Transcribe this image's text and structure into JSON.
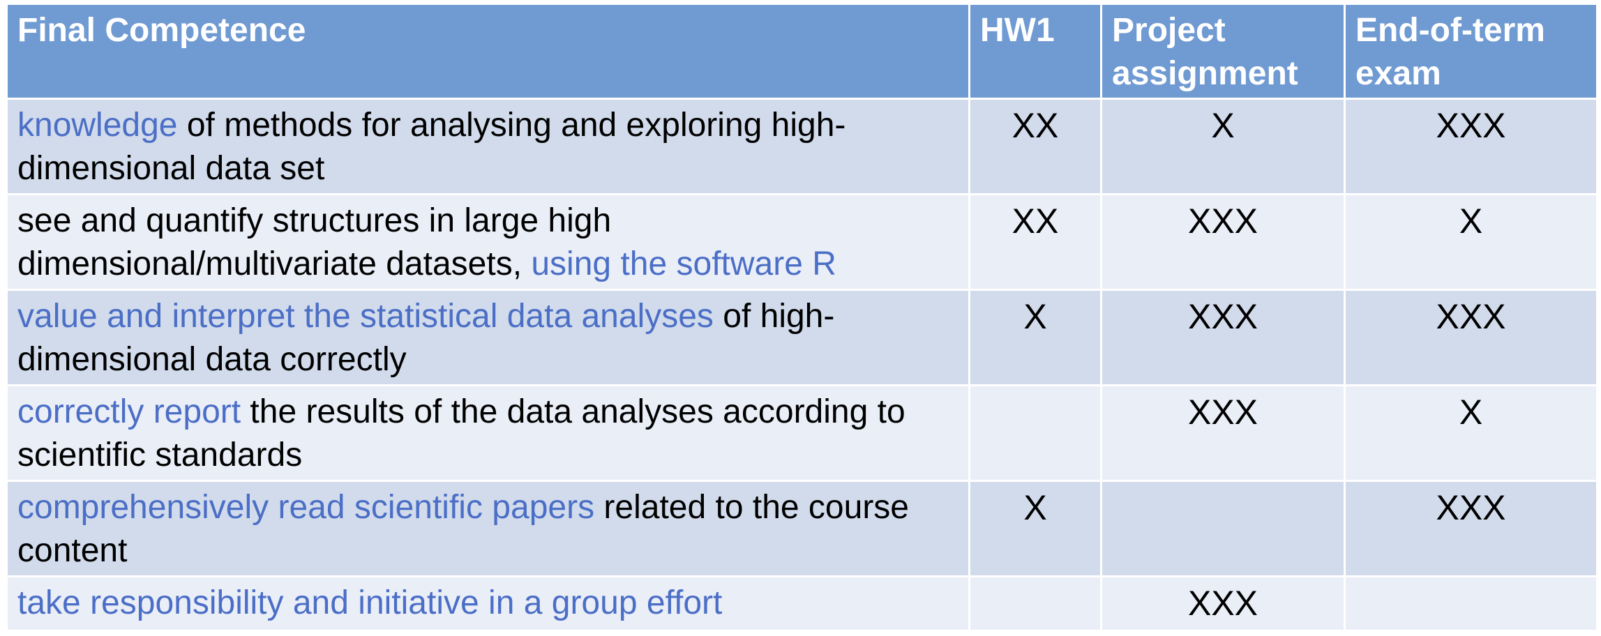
{
  "table": {
    "headers": [
      "Final Competence",
      "HW1",
      "Project assignment",
      "End-of-term exam"
    ],
    "rows": [
      {
        "competence": {
          "hl1": "knowledge",
          "rest1": " of methods for analysing and exploring high-dimensional data set",
          "hl2": "",
          "rest2": ""
        },
        "marks": [
          "XX",
          "X",
          "XXX"
        ]
      },
      {
        "competence": {
          "hl1": "",
          "rest1": "see and quantify structures in large high dimensional/multivariate datasets, ",
          "hl2": "using the software R",
          "rest2": ""
        },
        "marks": [
          "XX",
          "XXX",
          "X"
        ]
      },
      {
        "competence": {
          "hl1": "value and interpret the statistical data analyses",
          "rest1": " of high-dimensional data correctly",
          "hl2": "",
          "rest2": ""
        },
        "marks": [
          "X",
          "XXX",
          "XXX"
        ]
      },
      {
        "competence": {
          "hl1": "correctly report",
          "rest1": " the results of the data analyses according to scientific standards",
          "hl2": "",
          "rest2": ""
        },
        "marks": [
          "",
          "XXX",
          "X"
        ]
      },
      {
        "competence": {
          "hl1": "comprehensively read scientific papers",
          "rest1": " related to the course content",
          "hl2": "",
          "rest2": ""
        },
        "marks": [
          "X",
          "",
          "XXX"
        ]
      },
      {
        "competence": {
          "hl1": "take responsibility and initiative in a group effort",
          "rest1": "",
          "hl2": "",
          "rest2": ""
        },
        "marks": [
          "",
          "XXX",
          ""
        ]
      }
    ]
  },
  "colors": {
    "header_bg": "#6f9ad2",
    "row_dark": "#d1dbeb",
    "row_light": "#eaeef7",
    "highlight_text": "#4b6ec6"
  }
}
